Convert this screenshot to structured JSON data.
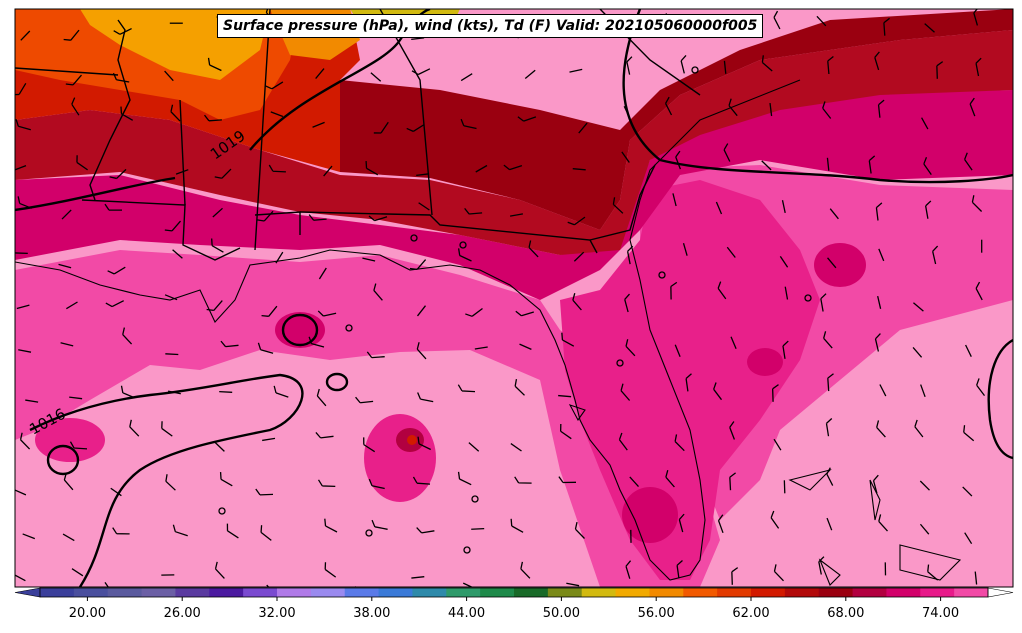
{
  "title": "Surface pressure (hPa), wind (kts), Td (F) Valid: 202105060000f005",
  "isobar_labels": [
    "1019",
    "1016"
  ],
  "colorbar": {
    "ticks": [
      "20.00",
      "26.00",
      "32.00",
      "38.00",
      "44.00",
      "50.00",
      "56.00",
      "62.00",
      "68.00",
      "74.00"
    ],
    "tick_values": [
      20,
      26,
      32,
      38,
      44,
      50,
      56,
      62,
      68,
      74
    ],
    "min": 17,
    "max": 77,
    "step": 2,
    "colors": [
      "#3a3f9b",
      "#4a4f9e",
      "#5a5a9e",
      "#6b5fa5",
      "#5a3aa0",
      "#4b1aa0",
      "#7a4ad0",
      "#b07ae8",
      "#9a8aef",
      "#5a7ae8",
      "#3a7ad8",
      "#2e8aaa",
      "#2e9a6a",
      "#1e8a4a",
      "#186a28",
      "#7a8a18",
      "#d2ba10",
      "#f2aa00",
      "#f28a00",
      "#f25a00",
      "#e23a00",
      "#d21a00",
      "#b20a0a",
      "#9a0010",
      "#b20040",
      "#d2006a",
      "#e81a8a",
      "#f24aa6"
    ]
  },
  "colors": {
    "ocean_td": "#fa98c8",
    "coast_td": "#f24aa6",
    "land_humid": "#d2006a",
    "land_dry": "#b20a20",
    "inland_dry": "#ee4a00",
    "far_dry": "#f5a000"
  }
}
